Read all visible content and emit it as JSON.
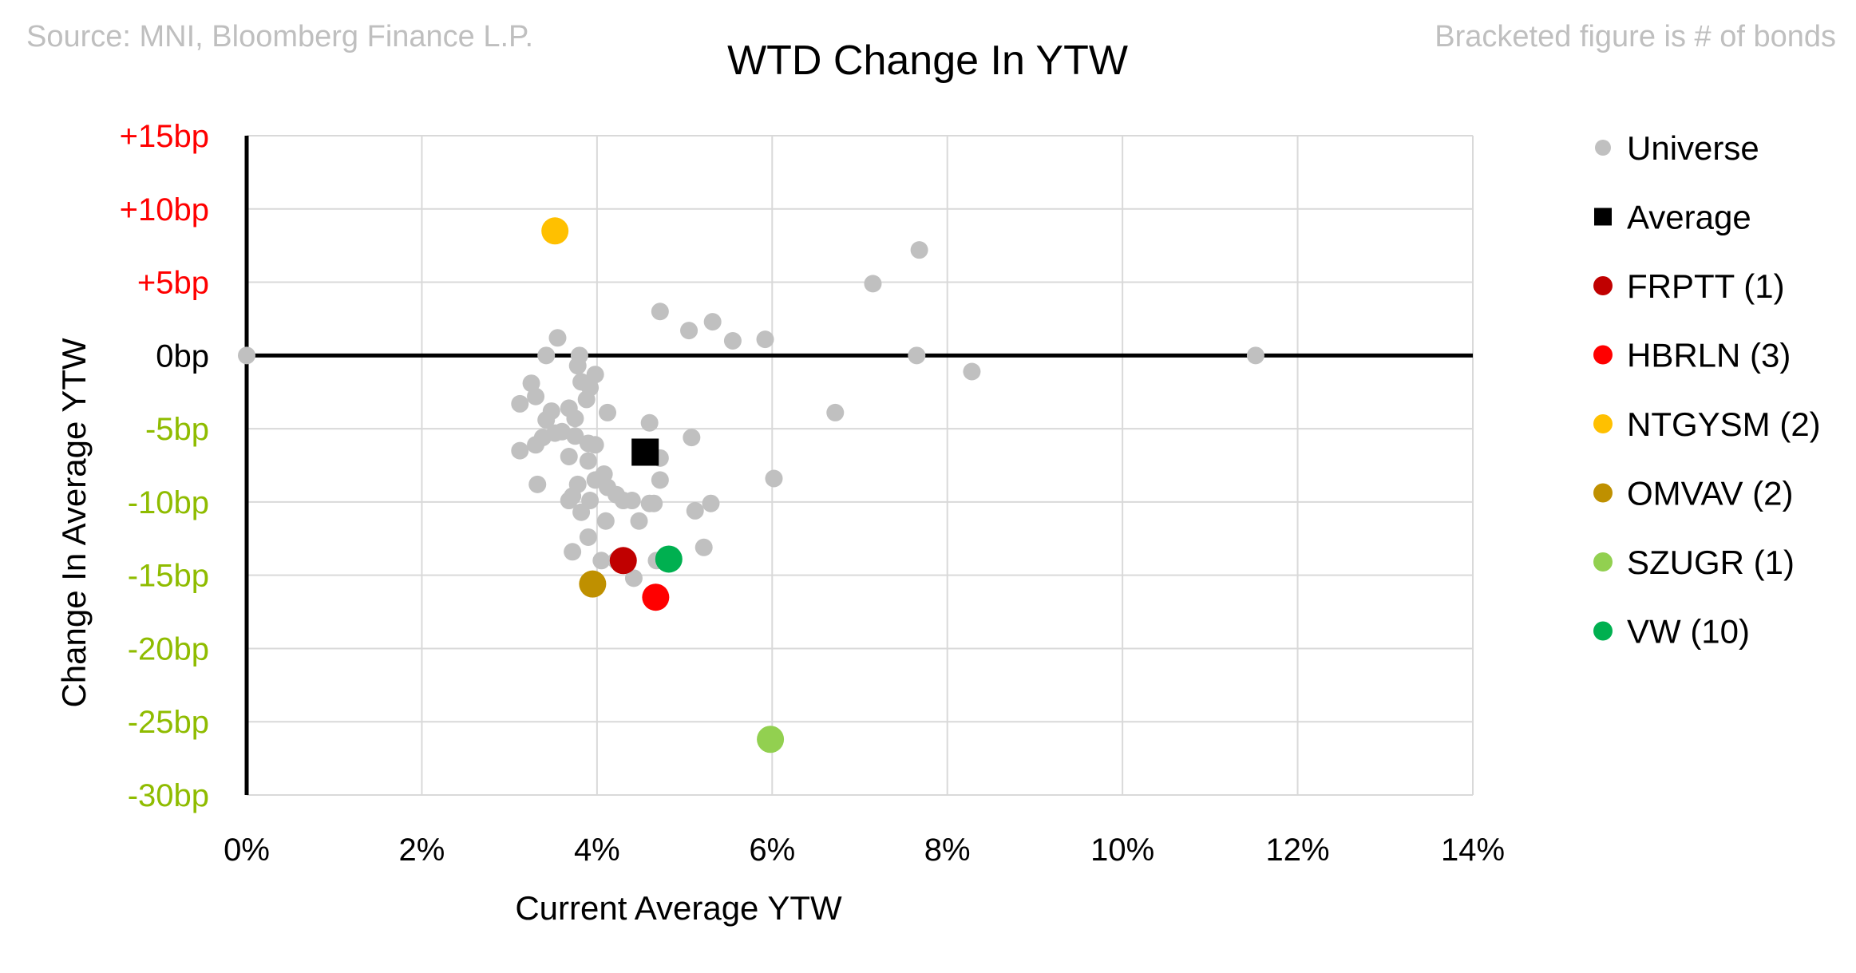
{
  "source_note": "Source: MNI, Bloomberg Finance L.P.",
  "bracket_note": "Bracketed figure is # of bonds",
  "colors": {
    "universe": "#c0c0c0",
    "average": "#000000",
    "FRPTT": "#c00000",
    "HBRLN": "#ff0000",
    "NTGYSM": "#ffc000",
    "OMVAV": "#bf9000",
    "SZUGR": "#92d050",
    "VW": "#00b050",
    "pos_tick": "#ff0000",
    "neg_tick": "#8fbc00"
  },
  "chart_data": {
    "type": "scatter",
    "title": "WTD Change In YTW",
    "xlabel": "Current Average YTW",
    "ylabel": "Change In Average YTW",
    "xlim": [
      0,
      14
    ],
    "ylim": [
      -30,
      15
    ],
    "x_unit": "%",
    "y_unit": "bp",
    "x_ticks": [
      0,
      2,
      4,
      6,
      8,
      10,
      12,
      14
    ],
    "x_tick_labels": [
      "0%",
      "2%",
      "4%",
      "6%",
      "8%",
      "10%",
      "12%",
      "14%"
    ],
    "y_ticks": [
      15,
      10,
      5,
      0,
      -5,
      -10,
      -15,
      -20,
      -25,
      -30
    ],
    "y_tick_labels": [
      "+15bp",
      "+10bp",
      "+5bp",
      "0bp",
      "-5bp",
      "-10bp",
      "-15bp",
      "-20bp",
      "-25bp",
      "-30bp"
    ],
    "grid": true,
    "legend_position": "right",
    "series": [
      {
        "name": "Universe",
        "legend_label": "Universe",
        "color_key": "universe",
        "marker": "circle-small",
        "points": [
          [
            0.0,
            0.0
          ],
          [
            3.42,
            0.0
          ],
          [
            3.55,
            1.2
          ],
          [
            3.8,
            0.0
          ],
          [
            3.78,
            -0.7
          ],
          [
            3.98,
            -1.3
          ],
          [
            3.82,
            -1.8
          ],
          [
            3.92,
            -2.2
          ],
          [
            3.88,
            -3.0
          ],
          [
            3.25,
            -1.9
          ],
          [
            3.3,
            -2.8
          ],
          [
            3.12,
            -3.3
          ],
          [
            3.48,
            -3.8
          ],
          [
            3.68,
            -3.6
          ],
          [
            3.75,
            -4.3
          ],
          [
            3.42,
            -4.4
          ],
          [
            3.6,
            -5.2
          ],
          [
            3.38,
            -5.6
          ],
          [
            3.52,
            -5.3
          ],
          [
            3.75,
            -5.5
          ],
          [
            3.3,
            -6.1
          ],
          [
            3.12,
            -6.5
          ],
          [
            3.9,
            -6.0
          ],
          [
            3.98,
            -6.1
          ],
          [
            3.68,
            -6.9
          ],
          [
            3.9,
            -7.2
          ],
          [
            3.32,
            -8.8
          ],
          [
            3.78,
            -8.8
          ],
          [
            3.98,
            -8.5
          ],
          [
            4.08,
            -8.1
          ],
          [
            4.12,
            -9.0
          ],
          [
            4.22,
            -9.5
          ],
          [
            4.3,
            -9.9
          ],
          [
            4.4,
            -9.9
          ],
          [
            3.92,
            -9.9
          ],
          [
            3.68,
            -9.9
          ],
          [
            3.72,
            -9.6
          ],
          [
            3.82,
            -10.7
          ],
          [
            4.1,
            -11.3
          ],
          [
            4.48,
            -11.3
          ],
          [
            4.6,
            -10.1
          ],
          [
            4.65,
            -10.1
          ],
          [
            3.9,
            -12.4
          ],
          [
            3.72,
            -13.4
          ],
          [
            4.05,
            -14.0
          ],
          [
            4.22,
            -14.0
          ],
          [
            4.42,
            -15.2
          ],
          [
            4.68,
            -14.0
          ],
          [
            4.72,
            -8.5
          ],
          [
            4.72,
            -7.0
          ],
          [
            4.6,
            -4.6
          ],
          [
            5.08,
            -5.6
          ],
          [
            5.12,
            -10.6
          ],
          [
            5.22,
            -13.1
          ],
          [
            5.3,
            -10.1
          ],
          [
            4.12,
            -3.9
          ],
          [
            4.72,
            3.0
          ],
          [
            5.05,
            1.7
          ],
          [
            5.32,
            2.3
          ],
          [
            5.55,
            1.0
          ],
          [
            5.92,
            1.1
          ],
          [
            6.02,
            -8.4
          ],
          [
            6.72,
            -3.9
          ],
          [
            7.15,
            4.9
          ],
          [
            7.68,
            7.2
          ],
          [
            7.65,
            0.0
          ],
          [
            8.28,
            -1.1
          ],
          [
            11.52,
            0.0
          ]
        ]
      },
      {
        "name": "Average",
        "legend_label": "Average",
        "color_key": "average",
        "marker": "square",
        "points": [
          [
            4.55,
            -6.6
          ]
        ]
      },
      {
        "name": "FRPTT",
        "legend_label": "FRPTT  (1)",
        "color_key": "FRPTT",
        "marker": "circle-large",
        "points": [
          [
            4.3,
            -14.0
          ]
        ]
      },
      {
        "name": "HBRLN",
        "legend_label": "HBRLN  (3)",
        "color_key": "HBRLN",
        "marker": "circle-large",
        "points": [
          [
            4.67,
            -16.5
          ]
        ]
      },
      {
        "name": "NTGYSM",
        "legend_label": "NTGYSM  (2)",
        "color_key": "NTGYSM",
        "marker": "circle-large",
        "points": [
          [
            3.52,
            8.5
          ]
        ]
      },
      {
        "name": "OMVAV",
        "legend_label": "OMVAV  (2)",
        "color_key": "OMVAV",
        "marker": "circle-large",
        "points": [
          [
            3.95,
            -15.6
          ]
        ]
      },
      {
        "name": "SZUGR",
        "legend_label": "SZUGR  (1)",
        "color_key": "SZUGR",
        "marker": "circle-large",
        "points": [
          [
            5.98,
            -26.2
          ]
        ]
      },
      {
        "name": "VW",
        "legend_label": "VW  (10)",
        "color_key": "VW",
        "marker": "circle-large",
        "points": [
          [
            4.82,
            -13.9
          ]
        ]
      }
    ]
  }
}
